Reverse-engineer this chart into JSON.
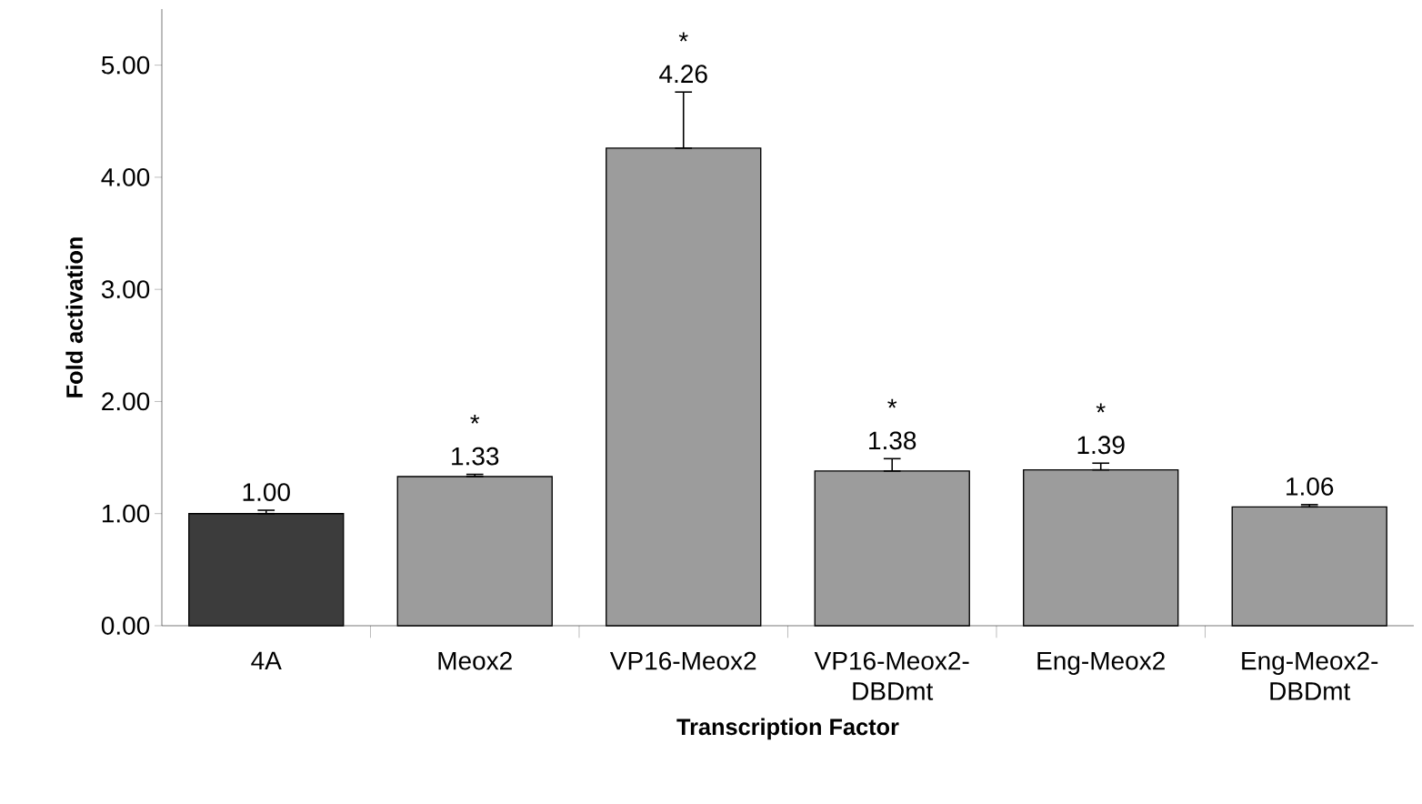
{
  "chart_data": {
    "type": "bar",
    "xlabel": "Transcription Factor",
    "ylabel": "Fold activation",
    "categories": [
      "4A",
      "Meox2",
      "VP16-Meox2",
      "VP16-Meox2-DBDmt",
      "Eng-Meox2",
      "Eng-Meox2-DBDmt"
    ],
    "values": [
      1.0,
      1.33,
      4.26,
      1.38,
      1.39,
      1.06
    ],
    "colors": [
      "#3c3c3c",
      "#9c9c9c",
      "#9c9c9c",
      "#9c9c9c",
      "#9c9c9c",
      "#9c9c9c"
    ],
    "errors": [
      [
        1.0,
        1.03
      ],
      [
        1.33,
        1.35
      ],
      [
        4.26,
        4.76
      ],
      [
        1.38,
        1.49
      ],
      [
        1.39,
        1.45
      ],
      [
        1.06,
        1.08
      ]
    ],
    "value_labels": [
      "1.00",
      "1.33",
      "4.26",
      "1.38",
      "1.39",
      "1.06"
    ],
    "annotations": [
      {
        "text": "*",
        "x": "Meox2",
        "y": 1.33
      },
      {
        "text": "*",
        "x": "VP16-Meox2",
        "y": 4.76
      },
      {
        "text": "*",
        "x": "VP16-Meox2-DBDmt",
        "y": 1.38
      },
      {
        "text": "*",
        "x": "Eng-Meox2",
        "y": 1.39
      }
    ],
    "ylim": [
      0,
      5.5
    ],
    "yticks": [
      {
        "value": 0,
        "label": "0.00"
      },
      {
        "value": 1,
        "label": "1.00"
      },
      {
        "value": 2,
        "label": "2.00"
      },
      {
        "value": 3,
        "label": "3.00"
      },
      {
        "value": 4,
        "label": "4.00"
      },
      {
        "value": 5,
        "label": "5.00"
      }
    ],
    "grid": false
  }
}
